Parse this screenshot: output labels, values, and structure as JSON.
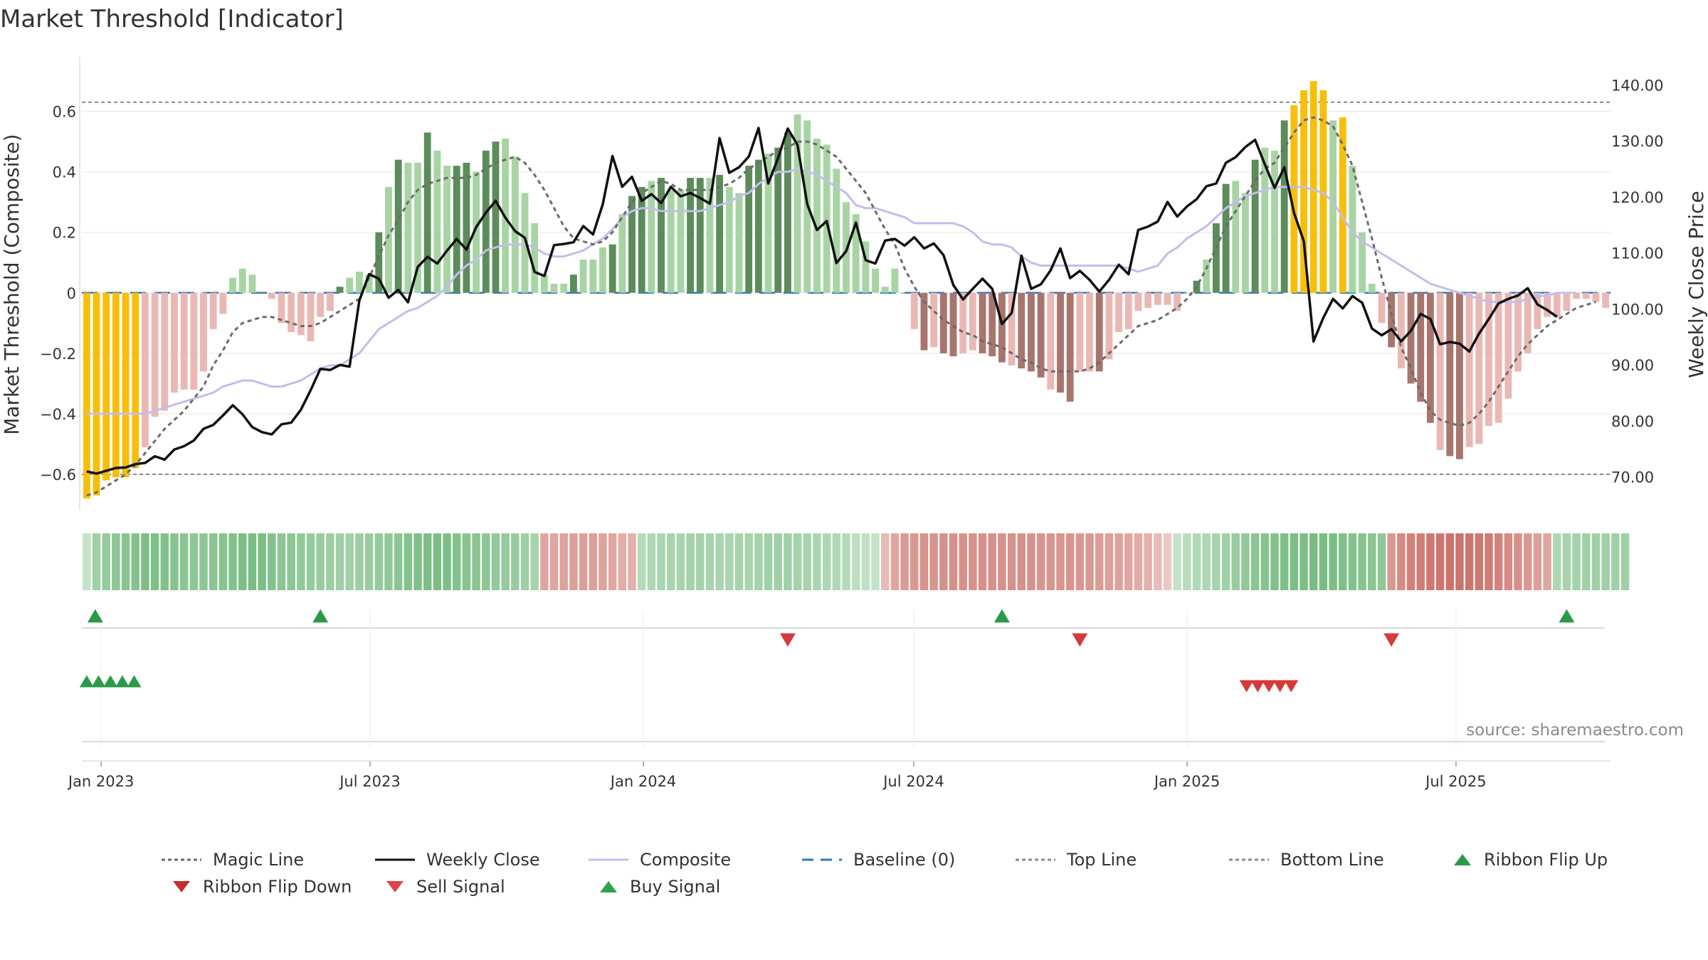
{
  "chart_data": {
    "type": "bar",
    "title": "Market Threshold [Indicator]",
    "ylabel_left": "Market Threshold (Composite)",
    "ylabel_right": "Weekly Close Price",
    "source": "source: sharemaestro.com",
    "left_axis": {
      "ylim": [
        -0.72,
        0.78
      ],
      "ticks": [
        0.6,
        0.4,
        0.2,
        0,
        -0.2,
        -0.4,
        -0.6
      ],
      "tick_labels": [
        "0.6",
        "0.4",
        "0.2",
        "0",
        "−0.2",
        "−0.4",
        "−0.6"
      ]
    },
    "right_axis": {
      "ylim": [
        64,
        145
      ],
      "ticks": [
        140,
        130,
        120,
        110,
        100,
        90,
        80,
        70
      ],
      "tick_labels": [
        "140.00",
        "130.00",
        "120.00",
        "110.00",
        "100.00",
        "90.00",
        "80.00",
        "70.00"
      ]
    },
    "x_axis": {
      "start": "2022-12-19",
      "end": "2025-10-13",
      "ticks": [
        "2023-01-01",
        "2023-07-01",
        "2024-01-01",
        "2024-07-01",
        "2025-01-01",
        "2025-07-01"
      ],
      "tick_labels": [
        "Jan 2023",
        "Jul 2023",
        "Jan 2024",
        "Jul 2024",
        "Jan 2025",
        "Jul 2025"
      ]
    },
    "reference_lines": {
      "top_line": 0.63,
      "bottom_line": -0.6,
      "baseline": 0
    },
    "colors": {
      "extreme": "#f7bf0b",
      "pos_strong": "#5b8c5a",
      "pos_weak": "#a8d4a4",
      "neg_strong": "#a8756e",
      "neg_weak": "#eab8b4",
      "weekly_close": "#111111",
      "composite": "#c4bdea",
      "magic_line": "#6b6b6b",
      "baseline": "#2f78b4",
      "ref_lines": "#8a8a8a",
      "buy": "#2a9a48",
      "sell": "#d43a3a"
    },
    "series": [
      {
        "name": "Composite bars",
        "values": [
          -0.68,
          -0.67,
          -0.62,
          -0.61,
          -0.61,
          -0.58,
          -0.51,
          -0.41,
          -0.39,
          -0.33,
          -0.32,
          -0.32,
          -0.26,
          -0.12,
          -0.07,
          0.05,
          0.08,
          0.06,
          0,
          -0.02,
          -0.1,
          -0.13,
          -0.14,
          -0.16,
          -0.08,
          -0.06,
          0.02,
          0.05,
          0.07,
          0.06,
          0.2,
          0.35,
          0.44,
          0.43,
          0.43,
          0.53,
          0.47,
          0.42,
          0.42,
          0.43,
          0.4,
          0.47,
          0.5,
          0.51,
          0.45,
          0.33,
          0.23,
          0.06,
          0.03,
          0.03,
          0.06,
          0.11,
          0.11,
          0.15,
          0.16,
          0.26,
          0.32,
          0.35,
          0.37,
          0.38,
          0.34,
          0.34,
          0.38,
          0.38,
          0.38,
          0.39,
          0.35,
          0.33,
          0.42,
          0.44,
          0.46,
          0.48,
          0.53,
          0.59,
          0.57,
          0.51,
          0.49,
          0.41,
          0.3,
          0.26,
          0.17,
          0.08,
          0.02,
          0.08,
          0,
          -0.12,
          -0.19,
          -0.18,
          -0.2,
          -0.21,
          -0.2,
          -0.19,
          -0.2,
          -0.21,
          -0.23,
          -0.24,
          -0.25,
          -0.26,
          -0.28,
          -0.32,
          -0.33,
          -0.36,
          -0.26,
          -0.26,
          -0.26,
          -0.22,
          -0.13,
          -0.12,
          -0.06,
          -0.05,
          -0.04,
          -0.04,
          -0.06,
          0,
          0.04,
          0.11,
          0.23,
          0.36,
          0.37,
          0.33,
          0.44,
          0.48,
          0.47,
          0.57,
          0.62,
          0.67,
          0.7,
          0.67,
          0.57,
          0.58,
          0.42,
          0.2,
          0.03,
          -0.1,
          -0.18,
          -0.25,
          -0.3,
          -0.36,
          -0.43,
          -0.52,
          -0.54,
          -0.55,
          -0.51,
          -0.5,
          -0.44,
          -0.43,
          -0.35,
          -0.26,
          -0.2,
          -0.12,
          -0.08,
          -0.08,
          -0.06,
          -0.02,
          -0.02,
          -0.03,
          -0.05
        ]
      },
      {
        "name": "Weekly Close",
        "values": [
          71,
          70.6,
          71.1,
          71.6,
          71.7,
          72.3,
          72.5,
          73.7,
          73.1,
          74.9,
          75.5,
          76.5,
          78.6,
          79.3,
          81,
          82.8,
          81.2,
          78.9,
          78,
          77.6,
          79.4,
          79.7,
          82,
          85.5,
          89.3,
          89.1,
          90,
          89.7,
          101.5,
          106.2,
          105.4,
          102,
          103.4,
          101.2,
          107.5,
          109.3,
          108.1,
          110.4,
          112.5,
          110.6,
          114.6,
          117.2,
          119.3,
          116.3,
          113.9,
          112.7,
          106.6,
          105.9,
          111.4,
          111.6,
          111.9,
          114.8,
          113.3,
          118.7,
          127.3,
          121.8,
          123.6,
          119.3,
          120.5,
          118.9,
          121.8,
          120.1,
          120.7,
          119.8,
          118.8,
          130.5,
          124.3,
          125.3,
          127.2,
          132.3,
          122.4,
          126.9,
          132.2,
          129.3,
          118.7,
          114.1,
          115.7,
          108.2,
          110.3,
          115.4,
          108.7,
          108.1,
          112.2,
          112.5,
          111.3,
          112.8,
          110.8,
          111.7,
          109.6,
          104.3,
          101.7,
          103.6,
          105.4,
          103.6,
          97.3,
          99.3,
          109.5,
          103.6,
          104.4,
          106.9,
          110.8,
          105.5,
          106.8,
          105.2,
          103.1,
          105.2,
          107.9,
          106.2,
          114.1,
          114.7,
          115.6,
          119.1,
          116.5,
          118.3,
          119.6,
          121.9,
          122.4,
          126.1,
          127.1,
          128.9,
          130.2,
          125.8,
          121.6,
          125.3,
          117.1,
          112.1,
          94.2,
          98.4,
          101.8,
          100.1,
          102.3,
          101.1,
          96.5,
          95.3,
          96.4,
          94.2,
          96.1,
          99.1,
          98.2,
          93.7,
          94.1,
          93.8,
          92.4,
          95.6,
          98.2,
          101,
          101.8,
          102.4,
          103.7,
          100.8,
          99.8,
          98.6
        ]
      },
      {
        "name": "Composite",
        "values": [
          -0.4,
          -0.4,
          -0.4,
          -0.4,
          -0.4,
          -0.4,
          -0.4,
          -0.39,
          -0.38,
          -0.37,
          -0.36,
          -0.35,
          -0.34,
          -0.33,
          -0.31,
          -0.3,
          -0.29,
          -0.29,
          -0.3,
          -0.31,
          -0.31,
          -0.3,
          -0.29,
          -0.27,
          -0.25,
          -0.24,
          -0.24,
          -0.22,
          -0.2,
          -0.16,
          -0.12,
          -0.1,
          -0.08,
          -0.06,
          -0.05,
          -0.03,
          -0.01,
          0.02,
          0.06,
          0.09,
          0.11,
          0.14,
          0.15,
          0.16,
          0.16,
          0.16,
          0.15,
          0.13,
          0.12,
          0.12,
          0.13,
          0.14,
          0.16,
          0.18,
          0.21,
          0.25,
          0.27,
          0.28,
          0.28,
          0.27,
          0.27,
          0.27,
          0.27,
          0.27,
          0.28,
          0.29,
          0.3,
          0.32,
          0.33,
          0.36,
          0.38,
          0.4,
          0.4,
          0.41,
          0.4,
          0.39,
          0.37,
          0.35,
          0.33,
          0.29,
          0.28,
          0.28,
          0.27,
          0.26,
          0.25,
          0.23,
          0.23,
          0.23,
          0.23,
          0.23,
          0.22,
          0.2,
          0.17,
          0.16,
          0.16,
          0.15,
          0.12,
          0.1,
          0.09,
          0.09,
          0.09,
          0.09,
          0.09,
          0.09,
          0.09,
          0.09,
          0.09,
          0.08,
          0.07,
          0.08,
          0.09,
          0.13,
          0.15,
          0.18,
          0.2,
          0.22,
          0.25,
          0.28,
          0.3,
          0.32,
          0.33,
          0.34,
          0.35,
          0.35,
          0.35,
          0.35,
          0.34,
          0.33,
          0.3,
          0.25,
          0.2,
          0.17,
          0.15,
          0.13,
          0.11,
          0.09,
          0.07,
          0.05,
          0.03,
          0.02,
          0.01,
          0,
          -0.01,
          -0.02,
          -0.03,
          -0.03,
          -0.03,
          -0.03,
          -0.02,
          -0.01,
          -0.01,
          0,
          0,
          0
        ]
      },
      {
        "name": "Magic Line",
        "values": [
          -0.67,
          -0.66,
          -0.64,
          -0.62,
          -0.6,
          -0.57,
          -0.53,
          -0.49,
          -0.45,
          -0.42,
          -0.39,
          -0.35,
          -0.31,
          -0.24,
          -0.19,
          -0.13,
          -0.1,
          -0.09,
          -0.08,
          -0.08,
          -0.09,
          -0.1,
          -0.11,
          -0.11,
          -0.1,
          -0.08,
          -0.06,
          -0.04,
          -0.02,
          0.05,
          0.12,
          0.19,
          0.24,
          0.3,
          0.34,
          0.36,
          0.37,
          0.38,
          0.38,
          0.38,
          0.39,
          0.41,
          0.43,
          0.44,
          0.45,
          0.43,
          0.39,
          0.34,
          0.28,
          0.22,
          0.18,
          0.17,
          0.16,
          0.17,
          0.2,
          0.25,
          0.3,
          0.33,
          0.35,
          0.37,
          0.36,
          0.34,
          0.34,
          0.34,
          0.34,
          0.35,
          0.36,
          0.38,
          0.41,
          0.43,
          0.45,
          0.47,
          0.48,
          0.5,
          0.5,
          0.49,
          0.47,
          0.45,
          0.41,
          0.37,
          0.33,
          0.27,
          0.21,
          0.16,
          0.08,
          0.02,
          -0.03,
          -0.06,
          -0.09,
          -0.11,
          -0.13,
          -0.14,
          -0.16,
          -0.17,
          -0.18,
          -0.2,
          -0.22,
          -0.23,
          -0.25,
          -0.26,
          -0.26,
          -0.26,
          -0.26,
          -0.25,
          -0.23,
          -0.2,
          -0.17,
          -0.14,
          -0.11,
          -0.1,
          -0.09,
          -0.07,
          -0.05,
          -0.02,
          0.02,
          0.08,
          0.15,
          0.22,
          0.27,
          0.32,
          0.37,
          0.41,
          0.43,
          0.48,
          0.53,
          0.57,
          0.58,
          0.57,
          0.55,
          0.49,
          0.42,
          0.3,
          0.18,
          0.05,
          -0.07,
          -0.18,
          -0.25,
          -0.33,
          -0.39,
          -0.42,
          -0.43,
          -0.44,
          -0.43,
          -0.4,
          -0.36,
          -0.31,
          -0.26,
          -0.21,
          -0.17,
          -0.14,
          -0.11,
          -0.09,
          -0.07,
          -0.05,
          -0.04,
          -0.03
        ]
      }
    ],
    "ribbon": [
      0.3,
      0.55,
      0.62,
      0.68,
      0.72,
      0.75,
      0.8,
      0.78,
      0.75,
      0.72,
      0.7,
      0.68,
      0.68,
      0.7,
      0.72,
      0.75,
      0.8,
      0.82,
      0.8,
      0.75,
      0.7,
      0.68,
      0.65,
      0.62,
      0.6,
      0.58,
      0.55,
      0.55,
      0.58,
      0.6,
      0.62,
      0.65,
      0.7,
      0.75,
      0.78,
      0.8,
      0.8,
      0.78,
      0.75,
      0.72,
      0.7,
      0.68,
      0.65,
      0.62,
      0.6,
      0.55,
      0.5,
      -0.45,
      -0.45,
      -0.48,
      -0.5,
      -0.5,
      -0.5,
      -0.48,
      -0.45,
      -0.4,
      -0.38,
      0.4,
      0.45,
      0.48,
      0.5,
      0.5,
      0.52,
      0.52,
      0.5,
      0.48,
      0.48,
      0.5,
      0.5,
      0.52,
      0.55,
      0.55,
      0.55,
      0.52,
      0.5,
      0.48,
      0.45,
      0.42,
      0.4,
      0.35,
      0.32,
      0.3,
      -0.3,
      -0.45,
      -0.52,
      -0.55,
      -0.58,
      -0.58,
      -0.6,
      -0.6,
      -0.6,
      -0.6,
      -0.6,
      -0.6,
      -0.6,
      -0.6,
      -0.6,
      -0.6,
      -0.58,
      -0.58,
      -0.58,
      -0.58,
      -0.56,
      -0.55,
      -0.52,
      -0.5,
      -0.48,
      -0.45,
      -0.42,
      -0.38,
      -0.3,
      -0.2,
      0.3,
      0.38,
      0.42,
      0.45,
      0.5,
      0.55,
      0.6,
      0.65,
      0.7,
      0.72,
      0.75,
      0.78,
      0.8,
      0.8,
      0.82,
      0.82,
      0.8,
      0.78,
      0.75,
      0.72,
      0.7,
      0.68,
      -0.55,
      -0.65,
      -0.72,
      -0.75,
      -0.78,
      -0.8,
      -0.82,
      -0.82,
      -0.8,
      -0.78,
      -0.75,
      -0.7,
      -0.65,
      -0.6,
      -0.55,
      -0.5,
      -0.45,
      0.45,
      0.5,
      0.52,
      0.55,
      0.55,
      0.55,
      0.55,
      0.55
    ],
    "signals": {
      "buy_signal": [
        0,
        24,
        94,
        152
      ],
      "sell_signal": [
        120,
        121,
        122,
        123,
        124
      ],
      "ribbon_flip_up": [
        0,
        1,
        2,
        3,
        4
      ],
      "ribbon_flip_down": [
        120,
        121,
        122,
        123,
        124
      ]
    },
    "legend": [
      {
        "label": "Magic Line",
        "type": "dotted",
        "color": "#6b6b6b"
      },
      {
        "label": "Weekly Close",
        "type": "solid",
        "color": "#111111"
      },
      {
        "label": "Composite",
        "type": "solid",
        "color": "#c4bdea"
      },
      {
        "label": "Baseline (0)",
        "type": "dashed",
        "color": "#2f78b4"
      },
      {
        "label": "Top Line",
        "type": "dotted",
        "color": "#8a8a8a"
      },
      {
        "label": "Bottom Line",
        "type": "dotted",
        "color": "#8a8a8a"
      },
      {
        "label": "Ribbon Flip Up",
        "type": "tri-up",
        "color": "#2a9a48"
      },
      {
        "label": "Ribbon Flip Down",
        "type": "tri-down",
        "color": "#c4302b"
      },
      {
        "label": "Sell Signal",
        "type": "tri-down",
        "color": "#e0434a"
      },
      {
        "label": "Buy Signal",
        "type": "tri-up",
        "color": "#33a04a"
      }
    ]
  }
}
